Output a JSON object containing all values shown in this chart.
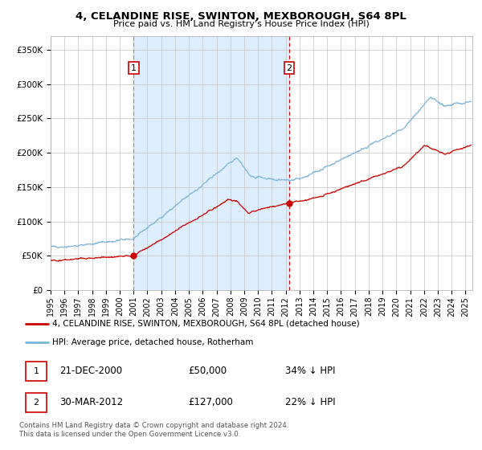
{
  "title_line1": "4, CELANDINE RISE, SWINTON, MEXBOROUGH, S64 8PL",
  "title_line2": "Price paid vs. HM Land Registry's House Price Index (HPI)",
  "legend_line1": "4, CELANDINE RISE, SWINTON, MEXBOROUGH, S64 8PL (detached house)",
  "legend_line2": "HPI: Average price, detached house, Rotherham",
  "annotation1_date": "21-DEC-2000",
  "annotation1_price": "£50,000",
  "annotation1_hpi": "34% ↓ HPI",
  "annotation2_date": "30-MAR-2012",
  "annotation2_price": "£127,000",
  "annotation2_hpi": "22% ↓ HPI",
  "footnote": "Contains HM Land Registry data © Crown copyright and database right 2024.\nThis data is licensed under the Open Government Licence v3.0.",
  "sale1_date_num": 2001.0,
  "sale1_price": 50000,
  "sale2_date_num": 2012.25,
  "sale2_price": 127000,
  "hpi_color": "#7ab4d8",
  "price_color": "#cc0000",
  "shading_color": "#ddeeff",
  "background_color": "#ffffff",
  "grid_color": "#cccccc",
  "ylim": [
    0,
    370000
  ],
  "xlim_start": 1995.0,
  "xlim_end": 2025.5
}
